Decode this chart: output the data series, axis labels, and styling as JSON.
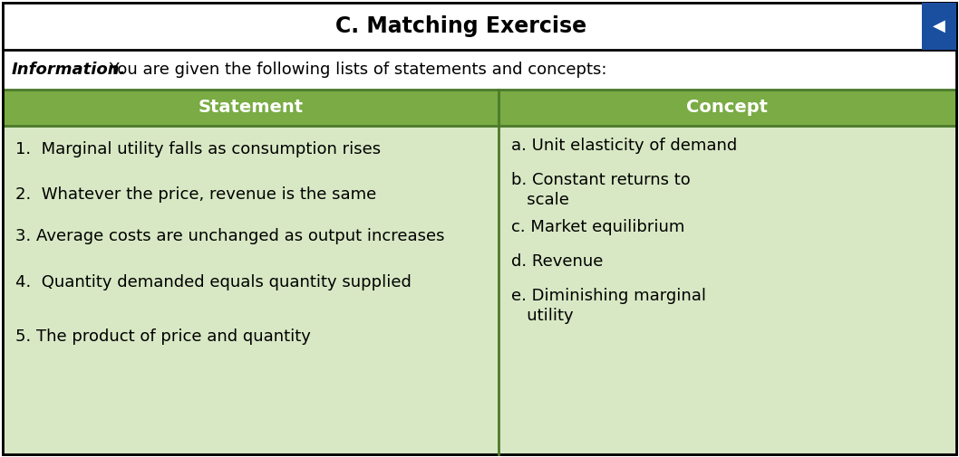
{
  "title": "C. Matching Exercise",
  "info_text_bold": "Information.",
  "info_text_normal": " You are given the following lists of statements and concepts:",
  "header_statement": "Statement",
  "header_concept": "Concept",
  "header_bg_color": "#7aab44",
  "header_text_color": "#ffffff",
  "table_bg_color": "#d8e8c4",
  "outer_bg_color": "#ffffff",
  "border_color": "#4a7a2a",
  "title_bg_color": "#ffffff",
  "statements": [
    "1.  Marginal utility falls as consumption rises",
    "2.  Whatever the price, revenue is the same",
    "3. Average costs are unchanged as output increases",
    "4.  Quantity demanded equals quantity supplied",
    "5. The product of price and quantity"
  ],
  "concepts_lines": [
    [
      "a. Unit elasticity of demand"
    ],
    [
      "b. Constant returns to",
      "   scale"
    ],
    [
      "c. Market equilibrium"
    ],
    [
      "d. Revenue"
    ],
    [
      "e. Diminishing marginal",
      "   utility"
    ]
  ],
  "title_fontsize": 17,
  "header_fontsize": 14,
  "body_fontsize": 13,
  "info_fontsize": 13,
  "bookmark_color": "#1a4fa0"
}
